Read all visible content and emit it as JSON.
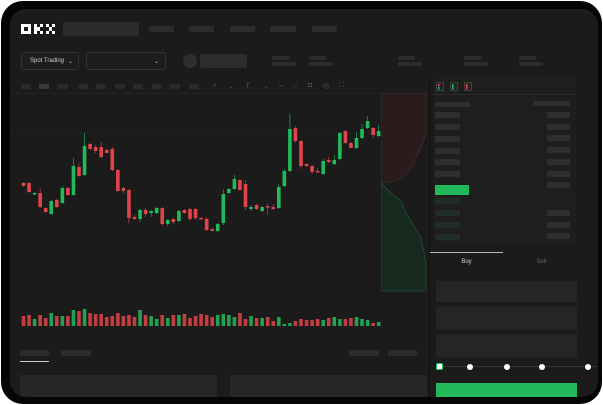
{
  "header": {
    "logo": "OKX"
  },
  "toolbar": {
    "market_selector": "Spot Trading",
    "market_chevron": "chevron-down-icon",
    "pair_chevron": "chevron-down-icon"
  },
  "chart_icons": [
    "candle-type-icon",
    "chevron-down-icon",
    "indicator-icon",
    "chevron-down-icon",
    "line-icon",
    "ruler-icon",
    "camera-icon",
    "settings-icon",
    "fullscreen-icon"
  ],
  "orderbook": {
    "view_icons": [
      "orderbook-both-icon",
      "orderbook-buy-icon",
      "orderbook-sell-icon"
    ]
  },
  "trade": {
    "tabs": [
      {
        "label": "Buy",
        "active": true
      },
      {
        "label": "Sell",
        "active": false
      }
    ],
    "slider_percent": 0
  },
  "colors": {
    "up": "#22b95b",
    "down": "#e0444a",
    "background": "#1b1b1b",
    "accent": "#22b95b"
  },
  "chart_data": {
    "type": "candlestick",
    "title": "",
    "ohlc": [
      [
        58,
        59,
        54,
        55
      ],
      [
        58,
        59,
        48,
        49
      ],
      [
        47,
        49,
        46,
        48
      ],
      [
        48,
        53,
        33,
        34
      ],
      [
        33,
        34,
        28,
        29
      ],
      [
        27,
        41,
        26,
        40
      ],
      [
        41,
        42,
        33,
        34
      ],
      [
        38,
        55,
        37,
        53
      ],
      [
        53,
        54,
        45,
        46
      ],
      [
        46,
        83,
        45,
        75
      ],
      [
        74,
        78,
        64,
        65
      ],
      [
        66,
        108,
        65,
        95
      ],
      [
        97,
        98,
        91,
        92
      ],
      [
        94,
        96,
        88,
        90
      ],
      [
        94,
        99,
        83,
        84
      ],
      [
        91,
        92,
        88,
        88
      ],
      [
        92,
        94,
        70,
        71
      ],
      [
        71,
        72,
        49,
        50
      ],
      [
        53,
        54,
        48,
        50
      ],
      [
        51,
        52,
        18,
        23
      ],
      [
        24,
        26,
        21,
        22
      ],
      [
        22,
        32,
        19,
        31
      ],
      [
        31,
        33,
        24,
        27
      ],
      [
        28,
        31,
        24,
        30
      ],
      [
        28,
        34,
        27,
        33
      ],
      [
        33,
        34,
        15,
        17
      ],
      [
        17,
        22,
        15,
        21
      ],
      [
        22,
        23,
        17,
        19
      ],
      [
        20,
        31,
        19,
        30
      ],
      [
        31,
        32,
        27,
        28
      ],
      [
        32,
        33,
        20,
        22
      ],
      [
        32,
        33,
        21,
        23
      ],
      [
        23,
        24,
        22,
        22
      ],
      [
        22,
        24,
        10,
        11
      ],
      [
        12,
        13,
        10,
        10
      ],
      [
        10,
        18,
        9,
        17
      ],
      [
        18,
        52,
        16,
        47
      ],
      [
        48,
        53,
        47,
        52
      ],
      [
        52,
        66,
        51,
        62
      ],
      [
        61,
        62,
        50,
        51
      ],
      [
        57,
        61,
        31,
        34
      ],
      [
        32,
        36,
        30,
        34
      ],
      [
        36,
        37,
        31,
        32
      ],
      [
        30,
        35,
        29,
        34
      ],
      [
        35,
        37,
        26,
        34
      ],
      [
        34,
        37,
        31,
        32
      ],
      [
        33,
        57,
        32,
        54
      ],
      [
        55,
        72,
        54,
        70
      ],
      [
        70,
        127,
        69,
        112
      ],
      [
        113,
        115,
        98,
        100
      ],
      [
        100,
        101,
        72,
        75
      ],
      [
        77,
        78,
        74,
        75
      ],
      [
        75,
        76,
        67,
        69
      ],
      [
        70,
        73,
        69,
        69
      ],
      [
        67,
        82,
        66,
        80
      ],
      [
        81,
        84,
        78,
        79
      ],
      [
        77,
        86,
        76,
        81
      ],
      [
        82,
        109,
        81,
        108
      ],
      [
        110,
        111,
        97,
        98
      ],
      [
        98,
        99,
        93,
        93
      ],
      [
        93,
        109,
        92,
        103
      ],
      [
        103,
        117,
        102,
        112
      ],
      [
        113,
        125,
        112,
        120
      ],
      [
        113,
        114,
        103,
        106
      ],
      [
        105,
        116,
        104,
        110
      ]
    ],
    "volume": [
      10,
      11,
      7,
      11,
      8,
      13,
      10,
      10,
      10,
      16,
      15,
      17,
      13,
      12,
      12,
      9,
      10,
      13,
      10,
      11,
      9,
      16,
      11,
      10,
      7,
      11,
      8,
      11,
      11,
      12,
      8,
      10,
      12,
      11,
      9,
      11,
      12,
      11,
      9,
      13,
      7,
      10,
      8,
      8,
      9,
      5,
      9,
      2,
      3,
      5,
      7,
      6,
      6,
      7,
      6,
      8,
      9,
      7,
      7,
      8,
      9,
      7,
      6,
      3,
      4
    ]
  }
}
